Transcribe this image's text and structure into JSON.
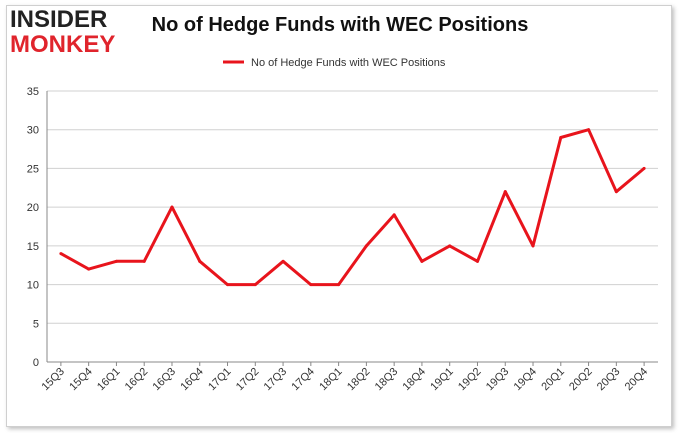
{
  "logo": {
    "line1": "INSIDER",
    "line2": "MONKEY"
  },
  "chart_data": {
    "type": "line",
    "title": "No of Hedge Funds with WEC Positions",
    "xlabel": "",
    "ylabel": "",
    "categories": [
      "15Q3",
      "15Q4",
      "16Q1",
      "16Q2",
      "16Q3",
      "16Q4",
      "17Q1",
      "17Q2",
      "17Q3",
      "17Q4",
      "18Q1",
      "18Q2",
      "18Q3",
      "18Q4",
      "19Q1",
      "19Q2",
      "19Q3",
      "19Q4",
      "20Q1",
      "20Q2",
      "20Q3",
      "20Q4"
    ],
    "series": [
      {
        "name": "No of Hedge Funds with WEC Positions",
        "values": [
          14,
          12,
          13,
          13,
          20,
          13,
          10,
          10,
          13,
          10,
          10,
          15,
          19,
          13,
          15,
          13,
          22,
          15,
          29,
          30,
          22,
          25
        ]
      }
    ],
    "ylim": [
      0,
      35
    ],
    "yticks": [
      0,
      5,
      10,
      15,
      20,
      25,
      30,
      35
    ],
    "grid": true,
    "legend": "top-center",
    "colors": {
      "line": "#e8141c",
      "grid": "#d0d0d0",
      "axis": "#888888",
      "text": "#333333"
    }
  }
}
